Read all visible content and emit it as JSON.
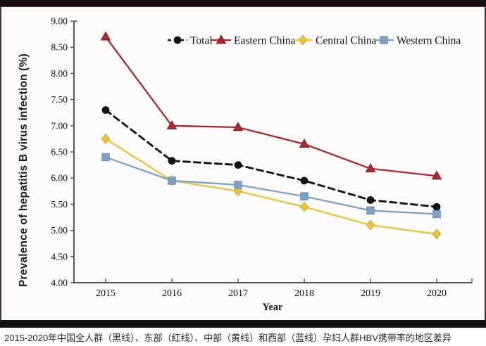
{
  "caption": "2015-2020年中国全人群（黑线）、东部（红线）、中部（黄线）和西部（蓝线）孕妇人群HBV携带率的地区差异",
  "chart_data": {
    "type": "line",
    "title": "",
    "xlabel": "Year",
    "ylabel": "Prevalence of hepatitis B virus infection (%)",
    "x": [
      "2015",
      "2016",
      "2017",
      "2018",
      "2019",
      "2020"
    ],
    "yticks": [
      "9.00",
      "8.50",
      "8.00",
      "7.50",
      "7.00",
      "6.50",
      "6.00",
      "5.50",
      "5.00",
      "4.50",
      "4.00"
    ],
    "ylim": [
      4.0,
      9.0
    ],
    "grid": false,
    "legend_position": "top-center",
    "axis_color": "#555555",
    "series": [
      {
        "name": "Total",
        "color": "#141414",
        "marker": "circle",
        "marker_stroke": "#141414",
        "line_style": "dashed",
        "values": [
          7.3,
          6.33,
          6.25,
          5.95,
          5.58,
          5.45
        ]
      },
      {
        "name": "Eastern China",
        "color": "#A8292E",
        "marker": "triangle",
        "marker_stroke": "#801d21",
        "line_style": "solid",
        "values": [
          8.7,
          7.0,
          6.97,
          6.65,
          6.18,
          6.04
        ]
      },
      {
        "name": "Central China",
        "color": "#E9C33B",
        "marker": "diamond",
        "marker_stroke": "#cfa02a",
        "line_style": "solid",
        "values": [
          6.75,
          5.95,
          5.75,
          5.45,
          5.1,
          4.93
        ]
      },
      {
        "name": "Western China",
        "color": "#7BA2C4",
        "marker": "square",
        "marker_stroke": "#5d87ad",
        "line_style": "solid",
        "values": [
          6.4,
          5.95,
          5.87,
          5.65,
          5.38,
          5.31
        ]
      }
    ]
  }
}
